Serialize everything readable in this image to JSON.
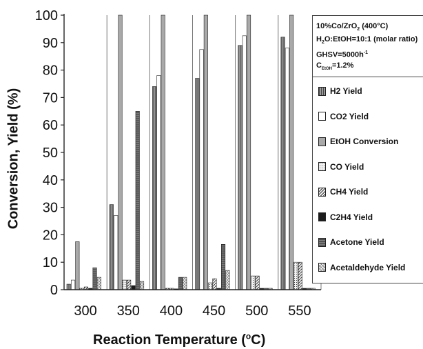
{
  "chart_data": {
    "type": "bar",
    "xlabel": "Reaction Temperature (°C)",
    "ylabel": "Conversion, Yield (%)",
    "ylim": [
      0,
      100
    ],
    "yticks": [
      0,
      10,
      20,
      30,
      40,
      50,
      60,
      70,
      80,
      90,
      100
    ],
    "categories": [
      "300",
      "350",
      "400",
      "450",
      "500",
      "550"
    ],
    "grid": "vertical",
    "legend_position": "right",
    "series": [
      {
        "name": "H2 Yield",
        "values": [
          2,
          31,
          74,
          77,
          89,
          92
        ]
      },
      {
        "name": "CO2 Yield",
        "values": [
          3.5,
          27,
          78,
          87.5,
          92.5,
          88
        ]
      },
      {
        "name": "EtOH Conversion",
        "values": [
          17.5,
          100,
          100,
          100,
          100,
          100
        ]
      },
      {
        "name": "CO Yield",
        "values": [
          0.5,
          3.5,
          0.5,
          2.5,
          5,
          10
        ]
      },
      {
        "name": "CH4 Yield",
        "values": [
          1,
          3.5,
          0.5,
          4,
          5,
          10
        ]
      },
      {
        "name": "C2H4 Yield",
        "values": [
          0.5,
          1.5,
          0.3,
          0.5,
          0.5,
          0.5
        ]
      },
      {
        "name": "Acetone Yield",
        "values": [
          8,
          65,
          4.5,
          16.5,
          0.5,
          0.5
        ]
      },
      {
        "name": "Acetaldehyde Yield",
        "values": [
          4.5,
          3,
          4.5,
          7,
          0.5,
          0.5
        ]
      }
    ],
    "notes": {
      "catalyst": "10%Co/ZrO",
      "catalyst_sub": "2",
      "catalyst_suffix": " (400°C)",
      "ratio_pre": "H",
      "ratio_sub": "2",
      "ratio_suffix": "O:EtOH=10:1 (molar ratio)",
      "ghsv_pre": "GHSV=5000h",
      "ghsv_sup": "-1",
      "conc_pre": "C",
      "conc_sub": "EtOH",
      "conc_suffix": "=1.2%"
    },
    "colors": [
      "#8a8a8a",
      "#ffffff",
      "#a9a9a9",
      "#e6e6e6",
      "#cfcfcf",
      "#1c1c1c",
      "#6e6e6e",
      "#ececec"
    ],
    "patterns": [
      "vlines",
      "none",
      "none",
      "dots",
      "diag",
      "none",
      "hlines",
      "cross"
    ]
  }
}
